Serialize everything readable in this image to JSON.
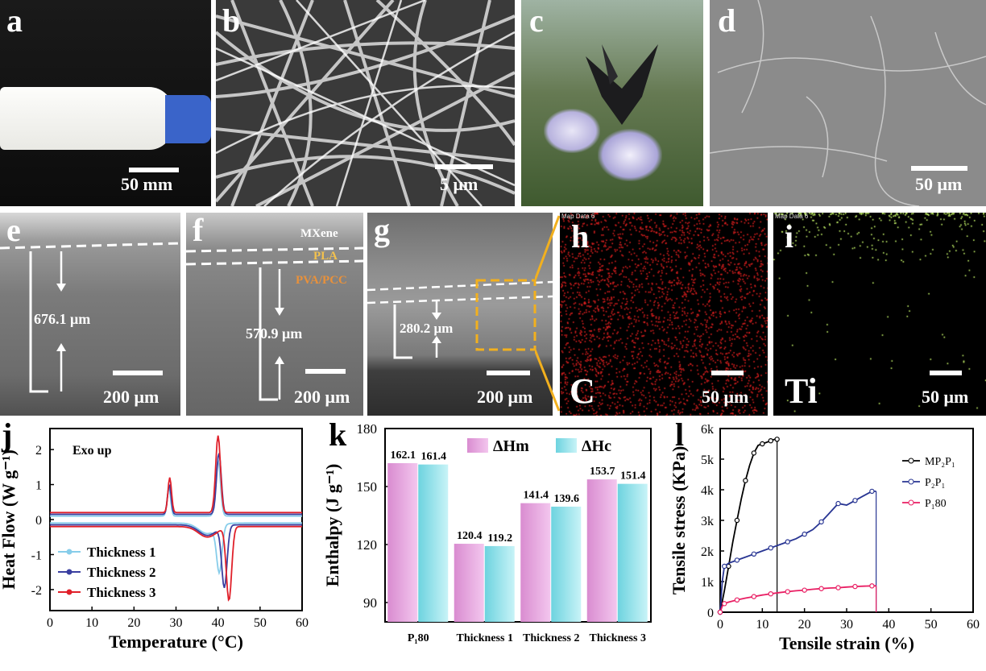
{
  "panels": {
    "a": {
      "label": "a",
      "scale": "50 mm"
    },
    "b": {
      "label": "b",
      "scale": "5 μm"
    },
    "c": {
      "label": "c"
    },
    "d": {
      "label": "d",
      "scale": "50 μm"
    },
    "e": {
      "label": "e",
      "thickness": "676.1 μm",
      "scale": "200 μm"
    },
    "f": {
      "label": "f",
      "layers": [
        "MXene",
        "PLA",
        "PVA/PCC"
      ],
      "thickness": "570.9 μm",
      "scale": "200 μm"
    },
    "g": {
      "label": "g",
      "thickness": "280.2 μm",
      "scale": "200 μm"
    },
    "h": {
      "label": "h",
      "map": "Map Data 6",
      "element": "C",
      "scale": "50 μm"
    },
    "i": {
      "label": "i",
      "map": "Map Data 6",
      "element": "Ti",
      "scale": "50 μm"
    },
    "j": {
      "label": "j"
    },
    "k": {
      "label": "k"
    },
    "l": {
      "label": "l"
    }
  },
  "colors": {
    "thickness1": "#87cdea",
    "thickness2": "#3a3fa0",
    "thickness3": "#e0202a",
    "dHm": "#d98cd0",
    "dHc": "#6dd3df",
    "mp2p1": "#000000",
    "p2p1": "#283593",
    "p180": "#e91e63",
    "eds_c": "#e02020",
    "eds_ti": "#c6f56a"
  },
  "chart_data": [
    {
      "id": "j",
      "type": "line",
      "xlabel": "Temperature (°C)",
      "ylabel": "Heat Flow (W g⁻¹)",
      "annotation": "Exo up",
      "xlim": [
        0,
        60
      ],
      "ylim": [
        -2.6,
        2.6
      ],
      "xticks": [
        "0",
        "10",
        "20",
        "30",
        "40",
        "50",
        "60"
      ],
      "yticks": [
        "-2",
        "-1",
        "0",
        "1",
        "2"
      ],
      "series": [
        {
          "name": "Thickness 1",
          "heating_peak_x": 40.3,
          "heating_peak_y": -1.4,
          "cooling_peak_x": 40.0,
          "cooling_peak_y": 1.7,
          "cool_shoulder_x": 28.3,
          "cool_shoulder_y": 0.9
        },
        {
          "name": "Thickness 2",
          "heating_peak_x": 41.5,
          "heating_peak_y": -1.9,
          "cooling_peak_x": 40.2,
          "cooling_peak_y": 1.9,
          "cool_shoulder_x": 28.4,
          "cool_shoulder_y": 1.0
        },
        {
          "name": "Thickness 3",
          "heating_peak_x": 42.6,
          "heating_peak_y": -2.3,
          "cooling_peak_x": 40.0,
          "cooling_peak_y": 2.4,
          "cool_shoulder_x": 28.5,
          "cool_shoulder_y": 1.2
        }
      ]
    },
    {
      "id": "k",
      "type": "bar",
      "ylabel": "Enthalpy (J g⁻¹)",
      "ylim": [
        80,
        180
      ],
      "yticks": [
        "90",
        "120",
        "150",
        "180"
      ],
      "categories": [
        "P₁80",
        "Thickness 1",
        "Thickness 2",
        "Thickness 3"
      ],
      "series": [
        {
          "name": "ΔHm",
          "values": [
            162.1,
            120.4,
            141.4,
            153.7
          ]
        },
        {
          "name": "ΔHc",
          "values": [
            161.4,
            119.2,
            139.6,
            151.4
          ]
        }
      ]
    },
    {
      "id": "l",
      "type": "line",
      "xlabel": "Tensile strain (%)",
      "ylabel": "Tensile stress (KPa)",
      "xlim": [
        0,
        60
      ],
      "ylim": [
        0,
        6000
      ],
      "xticks": [
        "0",
        "10",
        "20",
        "30",
        "40",
        "50",
        "60"
      ],
      "yticks": [
        "0",
        "1k",
        "2k",
        "3k",
        "4k",
        "5k",
        "6k"
      ],
      "series": [
        {
          "name": "MP₂P₁",
          "x": [
            0,
            1,
            2,
            3,
            4,
            5,
            6,
            7,
            8,
            9,
            10,
            11,
            12,
            13,
            13.5
          ],
          "y": [
            0,
            700,
            1500,
            2300,
            3000,
            3700,
            4300,
            4800,
            5200,
            5450,
            5500,
            5550,
            5600,
            5650,
            5650
          ],
          "break_x": 13.5
        },
        {
          "name": "P₂P₁",
          "x": [
            0,
            0.5,
            1,
            2,
            4,
            6,
            8,
            10,
            12,
            14,
            16,
            18,
            20,
            22,
            24,
            26,
            28,
            30,
            32,
            34,
            36,
            37
          ],
          "y": [
            0,
            1000,
            1500,
            1600,
            1700,
            1800,
            1900,
            2000,
            2100,
            2200,
            2300,
            2400,
            2550,
            2700,
            2950,
            3250,
            3550,
            3500,
            3650,
            3800,
            3950,
            3950
          ],
          "break_x": 37
        },
        {
          "name": "P₁80",
          "x": [
            0,
            0.5,
            1,
            2,
            4,
            6,
            8,
            10,
            12,
            14,
            16,
            18,
            20,
            22,
            24,
            26,
            28,
            30,
            32,
            34,
            36,
            37
          ],
          "y": [
            0,
            200,
            280,
            330,
            400,
            460,
            510,
            560,
            600,
            640,
            670,
            700,
            720,
            750,
            770,
            790,
            800,
            820,
            840,
            850,
            860,
            860
          ],
          "break_x": 37
        }
      ]
    }
  ]
}
